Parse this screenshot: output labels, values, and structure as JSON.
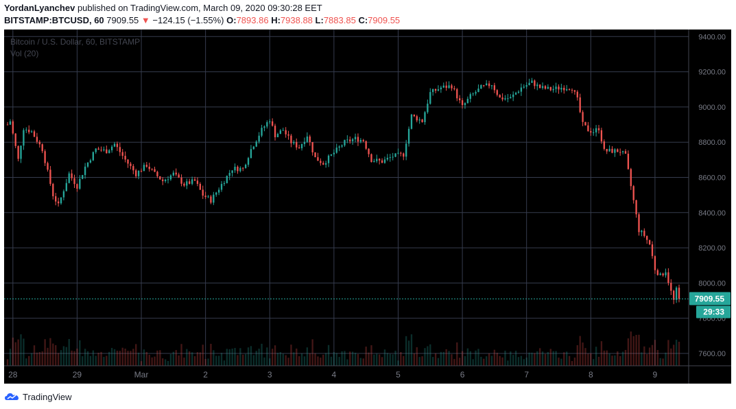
{
  "header": {
    "author": "YordanLyanchev",
    "published_text": "published on TradingView.com, March 09, 2020 09:30:28 EET",
    "symbol": "BITSTAMP:BTCUSD, 60",
    "last": "7909.55",
    "change": "−124.15 (−1.55%)",
    "open_label": "O:",
    "open": "7893.86",
    "high_label": "H:",
    "high": "7938.88",
    "low_label": "L:",
    "low": "7883.85",
    "close_label": "C:",
    "close": "7909.55"
  },
  "footer": {
    "brand": "TradingView"
  },
  "chart_data": {
    "type": "candlestick",
    "title": "Bitcoin / U.S. Dollar, 60, BITSTAMP",
    "subtitle": "Vol (20)",
    "ylim": [
      7530,
      9440
    ],
    "y_ticks": [
      "9400.00",
      "9200.00",
      "9000.00",
      "8800.00",
      "8600.00",
      "8400.00",
      "8200.00",
      "8000.00",
      "7800.00",
      "7600.00"
    ],
    "x_ticks": [
      "28",
      "29",
      "Mar",
      "2",
      "3",
      "4",
      "5",
      "6",
      "7",
      "8",
      "9"
    ],
    "last_price_label": "7909.55",
    "last_price": 7909.55,
    "countdown_label": "29:33",
    "grid": true,
    "colors": {
      "up": "#26a69a",
      "down": "#ef5350",
      "bg": "#000000",
      "grid": "#363c4e",
      "axis_text": "#787b86",
      "badge": "#26a69a"
    },
    "price_path": [
      [
        0,
        8900
      ],
      [
        1,
        8920
      ],
      [
        4,
        8700
      ],
      [
        6,
        8880
      ],
      [
        9,
        8860
      ],
      [
        13,
        8760
      ],
      [
        17,
        8500
      ],
      [
        19,
        8440
      ],
      [
        23,
        8620
      ],
      [
        26,
        8550
      ],
      [
        29,
        8660
      ],
      [
        33,
        8760
      ],
      [
        37,
        8750
      ],
      [
        40,
        8790
      ],
      [
        44,
        8700
      ],
      [
        48,
        8620
      ],
      [
        52,
        8670
      ],
      [
        55,
        8620
      ],
      [
        58,
        8580
      ],
      [
        62,
        8620
      ],
      [
        66,
        8560
      ],
      [
        70,
        8580
      ],
      [
        73,
        8500
      ],
      [
        76,
        8470
      ],
      [
        80,
        8560
      ],
      [
        84,
        8650
      ],
      [
        88,
        8650
      ],
      [
        91,
        8760
      ],
      [
        95,
        8870
      ],
      [
        98,
        8930
      ],
      [
        100,
        8840
      ],
      [
        103,
        8870
      ],
      [
        106,
        8800
      ],
      [
        109,
        8770
      ],
      [
        112,
        8840
      ],
      [
        115,
        8710
      ],
      [
        118,
        8680
      ],
      [
        122,
        8740
      ],
      [
        126,
        8800
      ],
      [
        130,
        8820
      ],
      [
        133,
        8810
      ],
      [
        136,
        8700
      ],
      [
        140,
        8690
      ],
      [
        144,
        8720
      ],
      [
        148,
        8730
      ],
      [
        151,
        8950
      ],
      [
        155,
        8920
      ],
      [
        158,
        9080
      ],
      [
        162,
        9110
      ],
      [
        166,
        9120
      ],
      [
        170,
        9000
      ],
      [
        173,
        9060
      ],
      [
        177,
        9110
      ],
      [
        181,
        9130
      ],
      [
        184,
        9050
      ],
      [
        188,
        9050
      ],
      [
        192,
        9110
      ],
      [
        196,
        9140
      ],
      [
        199,
        9110
      ],
      [
        203,
        9100
      ],
      [
        207,
        9110
      ],
      [
        211,
        9110
      ],
      [
        213,
        9040
      ],
      [
        215,
        8900
      ],
      [
        217,
        8870
      ],
      [
        219,
        8860
      ],
      [
        221,
        8880
      ],
      [
        223,
        8750
      ],
      [
        226,
        8750
      ],
      [
        229,
        8750
      ],
      [
        231,
        8720
      ],
      [
        233,
        8550
      ],
      [
        236,
        8300
      ],
      [
        238,
        8270
      ],
      [
        240,
        8220
      ],
      [
        242,
        8080
      ],
      [
        244,
        8040
      ],
      [
        246,
        8070
      ],
      [
        248,
        7950
      ],
      [
        249,
        7900
      ],
      [
        250,
        7960
      ],
      [
        251,
        7909.55
      ]
    ]
  }
}
